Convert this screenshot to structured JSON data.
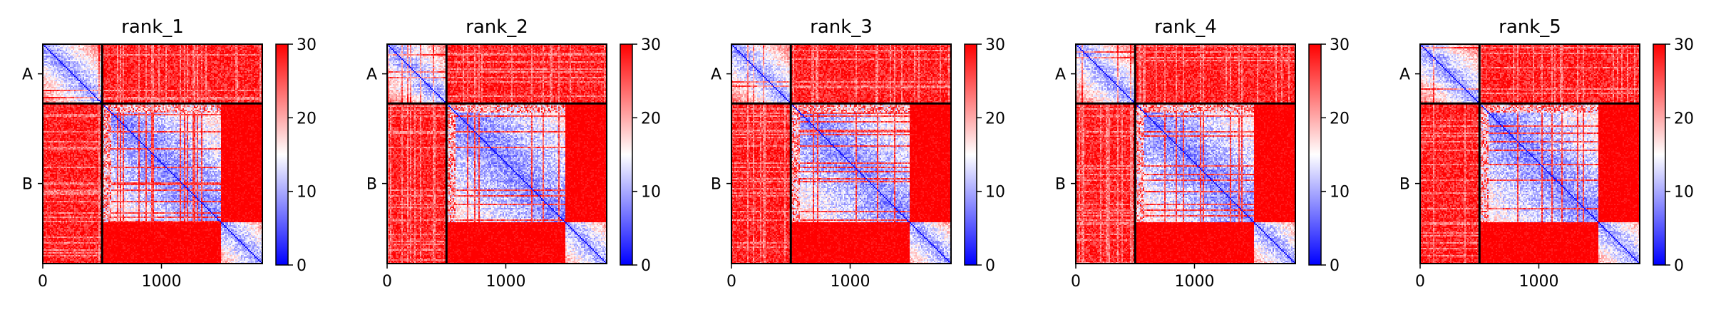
{
  "chart_data": [
    {
      "type": "heatmap",
      "title": "rank_1",
      "chains": [
        {
          "label": "A",
          "start": 0,
          "end": 500
        },
        {
          "label": "B",
          "start": 500,
          "end": 1850
        }
      ],
      "x_ticks": [
        {
          "value": 0,
          "label": "0"
        },
        {
          "value": 1000,
          "label": "1000"
        }
      ],
      "matrix_size": 1850,
      "sub_blocks_in_B": [
        {
          "start": 500,
          "end": 1500
        },
        {
          "start": 1500,
          "end": 1850
        }
      ],
      "colorbar": {
        "min": 0,
        "max": 30,
        "ticks": [
          {
            "value": 0,
            "label": "0"
          },
          {
            "value": 10,
            "label": "10"
          },
          {
            "value": 20,
            "label": "20"
          },
          {
            "value": 30,
            "label": "30"
          }
        ],
        "colormap": "bwr"
      },
      "grid": false
    },
    {
      "type": "heatmap",
      "title": "rank_2",
      "chains": [
        {
          "label": "A",
          "start": 0,
          "end": 500
        },
        {
          "label": "B",
          "start": 500,
          "end": 1850
        }
      ],
      "x_ticks": [
        {
          "value": 0,
          "label": "0"
        },
        {
          "value": 1000,
          "label": "1000"
        }
      ],
      "matrix_size": 1850,
      "sub_blocks_in_B": [
        {
          "start": 500,
          "end": 1500
        },
        {
          "start": 1500,
          "end": 1850
        }
      ],
      "colorbar": {
        "min": 0,
        "max": 30,
        "ticks": [
          {
            "value": 0,
            "label": "0"
          },
          {
            "value": 10,
            "label": "10"
          },
          {
            "value": 20,
            "label": "20"
          },
          {
            "value": 30,
            "label": "30"
          }
        ],
        "colormap": "bwr"
      },
      "grid": false
    },
    {
      "type": "heatmap",
      "title": "rank_3",
      "chains": [
        {
          "label": "A",
          "start": 0,
          "end": 500
        },
        {
          "label": "B",
          "start": 500,
          "end": 1850
        }
      ],
      "x_ticks": [
        {
          "value": 0,
          "label": "0"
        },
        {
          "value": 1000,
          "label": "1000"
        }
      ],
      "matrix_size": 1850,
      "sub_blocks_in_B": [
        {
          "start": 500,
          "end": 1500
        },
        {
          "start": 1500,
          "end": 1850
        }
      ],
      "colorbar": {
        "min": 0,
        "max": 30,
        "ticks": [
          {
            "value": 0,
            "label": "0"
          },
          {
            "value": 10,
            "label": "10"
          },
          {
            "value": 20,
            "label": "20"
          },
          {
            "value": 30,
            "label": "30"
          }
        ],
        "colormap": "bwr"
      },
      "grid": false
    },
    {
      "type": "heatmap",
      "title": "rank_4",
      "chains": [
        {
          "label": "A",
          "start": 0,
          "end": 500
        },
        {
          "label": "B",
          "start": 500,
          "end": 1850
        }
      ],
      "x_ticks": [
        {
          "value": 0,
          "label": "0"
        },
        {
          "value": 1000,
          "label": "1000"
        }
      ],
      "matrix_size": 1850,
      "sub_blocks_in_B": [
        {
          "start": 500,
          "end": 1500
        },
        {
          "start": 1500,
          "end": 1850
        }
      ],
      "colorbar": {
        "min": 0,
        "max": 30,
        "ticks": [
          {
            "value": 0,
            "label": "0"
          },
          {
            "value": 10,
            "label": "10"
          },
          {
            "value": 20,
            "label": "20"
          },
          {
            "value": 30,
            "label": "30"
          }
        ],
        "colormap": "bwr"
      },
      "grid": false
    },
    {
      "type": "heatmap",
      "title": "rank_5",
      "chains": [
        {
          "label": "A",
          "start": 0,
          "end": 500
        },
        {
          "label": "B",
          "start": 500,
          "end": 1850
        }
      ],
      "x_ticks": [
        {
          "value": 0,
          "label": "0"
        },
        {
          "value": 1000,
          "label": "1000"
        }
      ],
      "matrix_size": 1850,
      "sub_blocks_in_B": [
        {
          "start": 500,
          "end": 1500
        },
        {
          "start": 1500,
          "end": 1850
        }
      ],
      "colorbar": {
        "min": 0,
        "max": 30,
        "ticks": [
          {
            "value": 0,
            "label": "0"
          },
          {
            "value": 10,
            "label": "10"
          },
          {
            "value": 20,
            "label": "20"
          },
          {
            "value": 30,
            "label": "30"
          }
        ],
        "colormap": "bwr"
      },
      "grid": false
    }
  ],
  "colors": {
    "low": "#0000ff",
    "mid": "#ffffff",
    "high": "#ff0000",
    "boundary": "#000000"
  }
}
